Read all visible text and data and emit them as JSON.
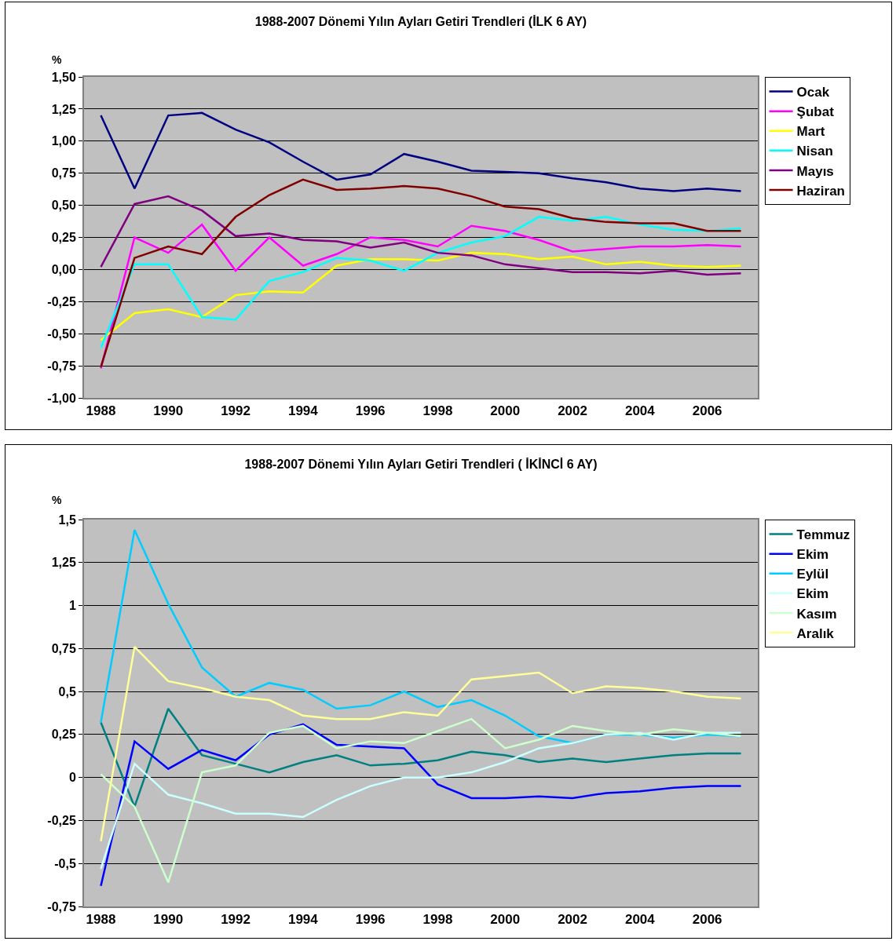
{
  "chart_data": [
    {
      "type": "line",
      "title": "1988-2007 Dönemi Yılın Ayları Getiri Trendleri (İLK 6 AY)",
      "ylabel": "%",
      "categories": [
        "1988",
        null,
        "1990",
        null,
        "1992",
        null,
        "1994",
        null,
        "1996",
        null,
        "1998",
        null,
        "2000",
        null,
        "2002",
        null,
        "2004",
        null,
        "2006",
        null
      ],
      "ylim": [
        -1,
        1.5
      ],
      "yticks": [
        {
          "value": 1.5,
          "label": "1,50"
        },
        {
          "value": 1.25,
          "label": "1,25"
        },
        {
          "value": 1,
          "label": "1,00"
        },
        {
          "value": 0.75,
          "label": "0,75"
        },
        {
          "value": 0.5,
          "label": "0,50"
        },
        {
          "value": 0.25,
          "label": "0,25"
        },
        {
          "value": 0,
          "label": "0,00"
        },
        {
          "value": -0.25,
          "label": "-0,25"
        },
        {
          "value": -0.5,
          "label": "-0,50"
        },
        {
          "value": -0.75,
          "label": "-0,75"
        },
        {
          "value": -1,
          "label": "-1,00"
        }
      ],
      "grid": "y",
      "legend": "right",
      "marker": "none",
      "line_style": "solid",
      "series": [
        {
          "name": "Ocak",
          "color": "#000080",
          "values": [
            1.2,
            0.63,
            1.2,
            1.22,
            1.09,
            0.99,
            0.84,
            0.7,
            0.74,
            0.9,
            0.84,
            0.77,
            0.76,
            0.75,
            0.71,
            0.68,
            0.63,
            0.61,
            0.63,
            0.61
          ]
        },
        {
          "name": "Şubat",
          "color": "#ff00ff",
          "values": [
            -0.77,
            0.25,
            0.13,
            0.35,
            -0.01,
            0.25,
            0.03,
            0.12,
            0.25,
            0.23,
            0.18,
            0.34,
            0.3,
            0.23,
            0.14,
            0.16,
            0.18,
            0.18,
            0.19,
            0.18
          ]
        },
        {
          "name": "Mart",
          "color": "#ffff00",
          "values": [
            -0.55,
            -0.34,
            -0.31,
            -0.37,
            -0.2,
            -0.17,
            -0.18,
            0.03,
            0.08,
            0.08,
            0.07,
            0.13,
            0.12,
            0.08,
            0.1,
            0.04,
            0.06,
            0.03,
            0.02,
            0.03
          ]
        },
        {
          "name": "Nisan",
          "color": "#00ffff",
          "values": [
            -0.61,
            0.04,
            0.04,
            -0.37,
            -0.39,
            -0.09,
            -0.02,
            0.09,
            0.07,
            -0.01,
            0.13,
            0.21,
            0.26,
            0.41,
            0.38,
            0.41,
            0.35,
            0.31,
            0.3,
            0.32
          ]
        },
        {
          "name": "Mayıs",
          "color": "#800080",
          "values": [
            0.02,
            0.51,
            0.57,
            0.46,
            0.26,
            0.28,
            0.23,
            0.22,
            0.17,
            0.21,
            0.13,
            0.11,
            0.04,
            0.01,
            -0.02,
            -0.02,
            -0.03,
            -0.01,
            -0.04,
            -0.03
          ]
        },
        {
          "name": "Haziran",
          "color": "#800000",
          "values": [
            -0.76,
            0.09,
            0.18,
            0.12,
            0.41,
            0.58,
            0.7,
            0.62,
            0.63,
            0.65,
            0.63,
            0.57,
            0.49,
            0.47,
            0.4,
            0.37,
            0.36,
            0.36,
            0.3,
            0.3
          ]
        }
      ]
    },
    {
      "type": "line",
      "title": "1988-2007 Dönemi Yılın Ayları Getiri Trendleri ( İKİNCİ 6 AY)",
      "ylabel": "%",
      "categories": [
        "1988",
        null,
        "1990",
        null,
        "1992",
        null,
        "1994",
        null,
        "1996",
        null,
        "1998",
        null,
        "2000",
        null,
        "2002",
        null,
        "2004",
        null,
        "2006",
        null
      ],
      "ylim": [
        -0.75,
        1.5
      ],
      "yticks": [
        {
          "value": 1.5,
          "label": "1,5"
        },
        {
          "value": 1.25,
          "label": "1,25"
        },
        1,
        {
          "value": 0.75,
          "label": "0,75"
        },
        {
          "value": 0.5,
          "label": "0,5"
        },
        {
          "value": 0.25,
          "label": "0,25"
        },
        0,
        {
          "value": -0.25,
          "label": "-0,25"
        },
        {
          "value": -0.5,
          "label": "-0,5"
        },
        {
          "value": -0.75,
          "label": "-0,75"
        }
      ],
      "grid": "y",
      "legend": "right",
      "marker": "none",
      "line_style": "solid",
      "series": [
        {
          "name": "Temmuz",
          "color": "#008080",
          "values": [
            0.32,
            -0.17,
            0.4,
            0.13,
            0.08,
            0.03,
            0.09,
            0.13,
            0.07,
            0.08,
            0.1,
            0.15,
            0.13,
            0.09,
            0.11,
            0.09,
            0.11,
            0.13,
            0.14,
            0.14
          ]
        },
        {
          "name": "Ekim",
          "color": "#0000ff",
          "values": [
            -0.63,
            0.21,
            0.05,
            0.16,
            0.1,
            0.25,
            0.31,
            0.19,
            0.18,
            0.17,
            -0.04,
            -0.12,
            -0.12,
            -0.11,
            -0.12,
            -0.09,
            -0.08,
            -0.06,
            -0.05,
            -0.05
          ]
        },
        {
          "name": "Eylül",
          "color": "#00ccff",
          "values": [
            0.32,
            1.44,
            1.01,
            0.64,
            0.47,
            0.55,
            0.51,
            0.4,
            0.42,
            0.5,
            0.41,
            0.45,
            0.36,
            0.24,
            0.2,
            0.25,
            0.25,
            0.23,
            0.25,
            0.24
          ]
        },
        {
          "name": "Ekim",
          "color": "#ccffff",
          "values": [
            -0.53,
            0.08,
            -0.1,
            -0.15,
            -0.21,
            -0.21,
            -0.23,
            -0.13,
            -0.05,
            0.0,
            0.0,
            0.03,
            0.09,
            0.17,
            0.2,
            0.25,
            0.26,
            0.22,
            0.26,
            0.26
          ]
        },
        {
          "name": "Kasım",
          "color": "#ccffcc",
          "values": [
            0.02,
            -0.17,
            -0.61,
            0.03,
            0.07,
            0.26,
            0.3,
            0.17,
            0.21,
            0.2,
            0.27,
            0.34,
            0.17,
            0.22,
            0.3,
            0.27,
            0.25,
            0.28,
            0.26,
            0.24
          ]
        },
        {
          "name": "Aralık",
          "color": "#ffff99",
          "values": [
            -0.37,
            0.76,
            0.56,
            0.52,
            0.47,
            0.45,
            0.36,
            0.34,
            0.34,
            0.38,
            0.36,
            0.57,
            0.59,
            0.61,
            0.49,
            0.53,
            0.52,
            0.5,
            0.47,
            0.46
          ]
        }
      ]
    }
  ]
}
